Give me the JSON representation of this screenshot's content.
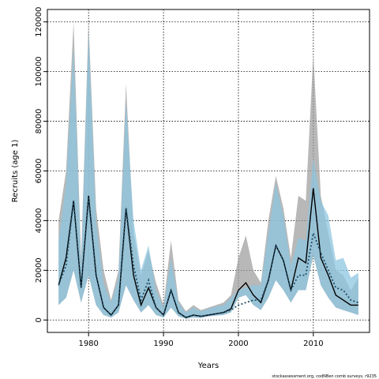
{
  "chart_data": {
    "type": "area",
    "title": "",
    "xlabel": "Years",
    "ylabel": "Recruits (age 1)",
    "footer": "stockassessment.org, codNBen comb surveys, r9235",
    "xlim": [
      1974.5,
      2017.5
    ],
    "ylim": [
      -5000,
      125000
    ],
    "grid": true,
    "x_ticks": [
      1980,
      1990,
      2000,
      2010
    ],
    "y_ticks": [
      0,
      20000,
      40000,
      60000,
      80000,
      100000,
      120000
    ],
    "x_tick_labels": [
      "1980",
      "1990",
      "2000",
      "2010"
    ],
    "y_tick_labels": [
      "0",
      "20000",
      "40000",
      "60000",
      "80000",
      "100000",
      "120000"
    ],
    "colors": {
      "band_gray": "#9a9a9a",
      "band_blue": "#8ec6df",
      "line_black": "#000000",
      "line_blue": "#1f4f6a"
    },
    "years": [
      1976,
      1977,
      1978,
      1979,
      1980,
      1981,
      1982,
      1983,
      1984,
      1985,
      1986,
      1987,
      1988,
      1989,
      1990,
      1991,
      1992,
      1993,
      1994,
      1995,
      1996,
      1997,
      1998,
      1999,
      2000,
      2001,
      2002,
      2003,
      2004,
      2005,
      2006,
      2007,
      2008,
      2009,
      2010,
      2011,
      2012,
      2013,
      2014,
      2015,
      2016
    ],
    "series": [
      {
        "kind": "band_gray",
        "upper": [
          40000,
          60000,
          120000,
          25000,
          120000,
          45000,
          20000,
          8000,
          20000,
          95000,
          35000,
          18000,
          28000,
          15000,
          6000,
          32000,
          8000,
          3500,
          6000,
          4000,
          5000,
          6000,
          7000,
          10000,
          25000,
          34000,
          20000,
          15000,
          40000,
          58000,
          45000,
          25000,
          50000,
          48000,
          107000,
          50000,
          35000,
          20000,
          18000,
          12000,
          17000
        ],
        "lower": [
          6000,
          9000,
          20000,
          7000,
          18000,
          6000,
          2000,
          1000,
          3000,
          14000,
          8000,
          3000,
          6000,
          2000,
          1000,
          5000,
          1500,
          500,
          1000,
          800,
          1500,
          1800,
          2000,
          3000,
          9000,
          10000,
          6000,
          4000,
          9000,
          16000,
          12000,
          7000,
          12000,
          12000,
          26000,
          14000,
          9000,
          5000,
          4000,
          3000,
          2000
        ]
      },
      {
        "kind": "band_blue",
        "upper": [
          32000,
          55000,
          110000,
          22000,
          115000,
          40000,
          15000,
          7000,
          17000,
          88000,
          40000,
          20000,
          30000,
          12000,
          5000,
          25000,
          7000,
          3000,
          5000,
          3500,
          4500,
          5500,
          6000,
          9000,
          12000,
          13000,
          14000,
          14000,
          35000,
          55000,
          42000,
          22000,
          33000,
          32000,
          65000,
          48000,
          42000,
          24000,
          25000,
          17000,
          19000
        ]
      },
      {
        "kind": "line_black",
        "name": "",
        "values": [
          14000,
          25000,
          48000,
          13000,
          50000,
          18000,
          5000,
          2000,
          6000,
          45000,
          18000,
          6000,
          13000,
          5000,
          2000,
          12000,
          3000,
          1000,
          2000,
          1500,
          2000,
          2500,
          3000,
          4500,
          12000,
          15000,
          10000,
          7000,
          16000,
          30000,
          24000,
          12000,
          25000,
          23000,
          53000,
          25000,
          18000,
          10000,
          8000,
          6000,
          6000
        ]
      },
      {
        "kind": "line_blue_dotted",
        "name": "",
        "values": [
          14000,
          22000,
          48000,
          13000,
          49000,
          18000,
          5000,
          2000,
          6000,
          45000,
          22000,
          8000,
          16000,
          5000,
          2000,
          12000,
          3000,
          1000,
          2000,
          1500,
          2000,
          2500,
          3000,
          4000,
          6000,
          7000,
          8000,
          8000,
          16000,
          30000,
          24000,
          12000,
          18000,
          18000,
          35000,
          27000,
          20000,
          13000,
          12000,
          8000,
          7000
        ]
      }
    ]
  }
}
